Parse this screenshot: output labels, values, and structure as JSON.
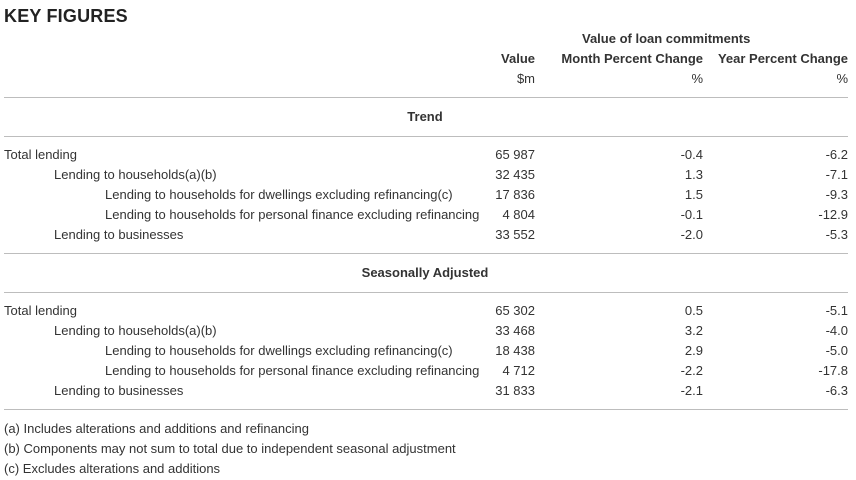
{
  "title": "KEY FIGURES",
  "header": {
    "group_label": "Value of loan commitments",
    "col_value": "Value",
    "col_month": "Month Percent Change",
    "col_year": "Year Percent Change",
    "unit_value": "$m",
    "unit_month": "%",
    "unit_year": "%"
  },
  "sections": [
    {
      "name": "Trend",
      "rows": [
        {
          "label": "Total lending",
          "value": "65 987",
          "month": "-0.4",
          "year": "-6.2"
        },
        {
          "label": "Lending to households(a)(b)",
          "value": "32 435",
          "month": "1.3",
          "year": "-7.1"
        },
        {
          "label": "Lending to households for dwellings excluding refinancing(c)",
          "value": "17 836",
          "month": "1.5",
          "year": "-9.3"
        },
        {
          "label": "Lending to households for personal finance excluding refinancing",
          "value": "4 804",
          "month": "-0.1",
          "year": "-12.9"
        },
        {
          "label": "Lending to businesses",
          "value": "33 552",
          "month": "-2.0",
          "year": "-5.3"
        }
      ]
    },
    {
      "name": "Seasonally Adjusted",
      "rows": [
        {
          "label": "Total lending",
          "value": "65 302",
          "month": "0.5",
          "year": "-5.1"
        },
        {
          "label": "Lending to households(a)(b)",
          "value": "33 468",
          "month": "3.2",
          "year": "-4.0"
        },
        {
          "label": "Lending to households for dwellings excluding refinancing(c)",
          "value": "18 438",
          "month": "2.9",
          "year": "-5.0"
        },
        {
          "label": "Lending to households for personal finance excluding refinancing",
          "value": "4 712",
          "month": "-2.2",
          "year": "-17.8"
        },
        {
          "label": "Lending to businesses",
          "value": "31 833",
          "month": "-2.1",
          "year": "-6.3"
        }
      ]
    }
  ],
  "footnotes": [
    "(a) Includes alterations and additions and refinancing",
    "(b) Components may not sum to total due to independent seasonal adjustment",
    "(c) Excludes alterations and additions"
  ]
}
